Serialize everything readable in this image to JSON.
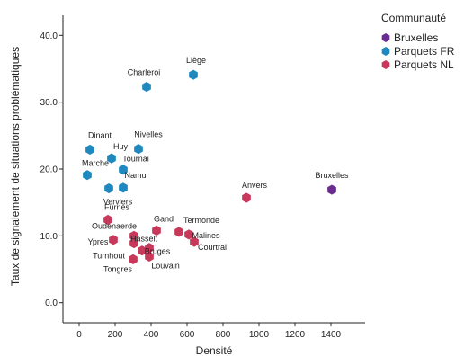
{
  "chart_data": {
    "type": "scatter",
    "title": "",
    "xlabel": "Densité",
    "ylabel": "Taux de signalement de situations problématiques",
    "xlim": [
      -90,
      1590
    ],
    "ylim": [
      -3,
      43
    ],
    "xticks": [
      0,
      200,
      400,
      600,
      800,
      1000,
      1200,
      1400
    ],
    "yticks": [
      0,
      10,
      20,
      30,
      40
    ],
    "yticks_labels": [
      "0.0",
      "10.0",
      "20.0",
      "30.0",
      "40.0"
    ],
    "grid": false,
    "legend": {
      "title": "Communauté",
      "position": "right"
    },
    "series": [
      {
        "name": "Bruxelles",
        "color": "#6a2c91",
        "points": [
          {
            "label": "Bruxelles",
            "x": 1405,
            "y": 16.9
          }
        ]
      },
      {
        "name": "Parquets FR",
        "color": "#1f88be",
        "points": [
          {
            "label": "Liège",
            "x": 635,
            "y": 34.1
          },
          {
            "label": "Charleroi",
            "x": 375,
            "y": 32.3
          },
          {
            "label": "Dinant",
            "x": 60,
            "y": 22.9
          },
          {
            "label": "Nivelles",
            "x": 330,
            "y": 23.0
          },
          {
            "label": "Huy",
            "x": 180,
            "y": 21.6
          },
          {
            "label": "Tournai",
            "x": 245,
            "y": 19.9
          },
          {
            "label": "Marche",
            "x": 45,
            "y": 19.1
          },
          {
            "label": "Namur",
            "x": 245,
            "y": 17.2
          },
          {
            "label": "Verviers",
            "x": 165,
            "y": 17.1
          }
        ]
      },
      {
        "name": "Parquets NL",
        "color": "#c8385a",
        "points": [
          {
            "label": "Anvers",
            "x": 930,
            "y": 15.7
          },
          {
            "label": "Furnes",
            "x": 160,
            "y": 12.4
          },
          {
            "label": "Gand",
            "x": 430,
            "y": 10.8
          },
          {
            "label": "Termonde",
            "x": 555,
            "y": 10.6
          },
          {
            "label": "Malines",
            "x": 610,
            "y": 10.2
          },
          {
            "label": "Oudenaerde",
            "x": 305,
            "y": 10.0
          },
          {
            "label": "Ypres",
            "x": 190,
            "y": 9.4
          },
          {
            "label": "Courtrai",
            "x": 640,
            "y": 9.1
          },
          {
            "label": "Hasselt",
            "x": 305,
            "y": 8.9
          },
          {
            "label": "Bruges",
            "x": 390,
            "y": 8.2
          },
          {
            "label": "Turnhout",
            "x": 350,
            "y": 7.8
          },
          {
            "label": "Louvain",
            "x": 390,
            "y": 6.9
          },
          {
            "label": "Tongres",
            "x": 300,
            "y": 6.5
          }
        ]
      }
    ]
  }
}
